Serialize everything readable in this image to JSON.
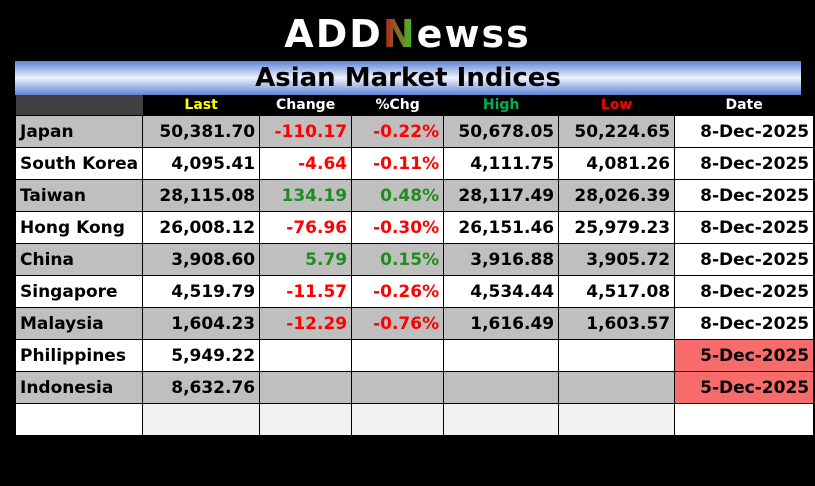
{
  "logo": {
    "text_a": "ADD",
    "text_n": "N",
    "text_b": "ewss"
  },
  "title": "Asian Market Indices",
  "headers": [
    {
      "label": "",
      "color": "#ffffff"
    },
    {
      "label": "Last",
      "color": "#ffff00"
    },
    {
      "label": "Change",
      "color": "#ffffff"
    },
    {
      "label": "%Chg",
      "color": "#ffffff"
    },
    {
      "label": "High",
      "color": "#00b050"
    },
    {
      "label": "Low",
      "color": "#ff0000"
    },
    {
      "label": "Date",
      "color": "#ffffff"
    }
  ],
  "rows": [
    {
      "name": "Japan",
      "last": "50,381.70",
      "change": "-110.17",
      "pct": "-0.22%",
      "high": "50,678.05",
      "low": "50,224.65",
      "date": "8-Dec-2025",
      "dir": "neg",
      "stale": false
    },
    {
      "name": "South Korea",
      "last": "4,095.41",
      "change": "-4.64",
      "pct": "-0.11%",
      "high": "4,111.75",
      "low": "4,081.26",
      "date": "8-Dec-2025",
      "dir": "neg",
      "stale": false
    },
    {
      "name": "Taiwan",
      "last": "28,115.08",
      "change": "134.19",
      "pct": "0.48%",
      "high": "28,117.49",
      "low": "28,026.39",
      "date": "8-Dec-2025",
      "dir": "pos",
      "stale": false
    },
    {
      "name": "Hong Kong",
      "last": "26,008.12",
      "change": "-76.96",
      "pct": "-0.30%",
      "high": "26,151.46",
      "low": "25,979.23",
      "date": "8-Dec-2025",
      "dir": "neg",
      "stale": false
    },
    {
      "name": "China",
      "last": "3,908.60",
      "change": "5.79",
      "pct": "0.15%",
      "high": "3,916.88",
      "low": "3,905.72",
      "date": "8-Dec-2025",
      "dir": "pos",
      "stale": false
    },
    {
      "name": "Singapore",
      "last": "4,519.79",
      "change": "-11.57",
      "pct": "-0.26%",
      "high": "4,534.44",
      "low": "4,517.08",
      "date": "8-Dec-2025",
      "dir": "neg",
      "stale": false
    },
    {
      "name": "Malaysia",
      "last": "1,604.23",
      "change": "-12.29",
      "pct": "-0.76%",
      "high": "1,616.49",
      "low": "1,603.57",
      "date": "8-Dec-2025",
      "dir": "neg",
      "stale": false
    },
    {
      "name": "Philippines",
      "last": "5,949.22",
      "change": "",
      "pct": "",
      "high": "",
      "low": "",
      "date": "5-Dec-2025",
      "dir": "",
      "stale": true
    },
    {
      "name": "Indonesia",
      "last": "8,632.76",
      "change": "",
      "pct": "",
      "high": "",
      "low": "",
      "date": "5-Dec-2025",
      "dir": "",
      "stale": true
    }
  ],
  "colors": {
    "positive": "#1f8c1f",
    "negative": "#ff0000",
    "stale_date": "#f86b6b",
    "row_alt": "#bfbfbf"
  }
}
